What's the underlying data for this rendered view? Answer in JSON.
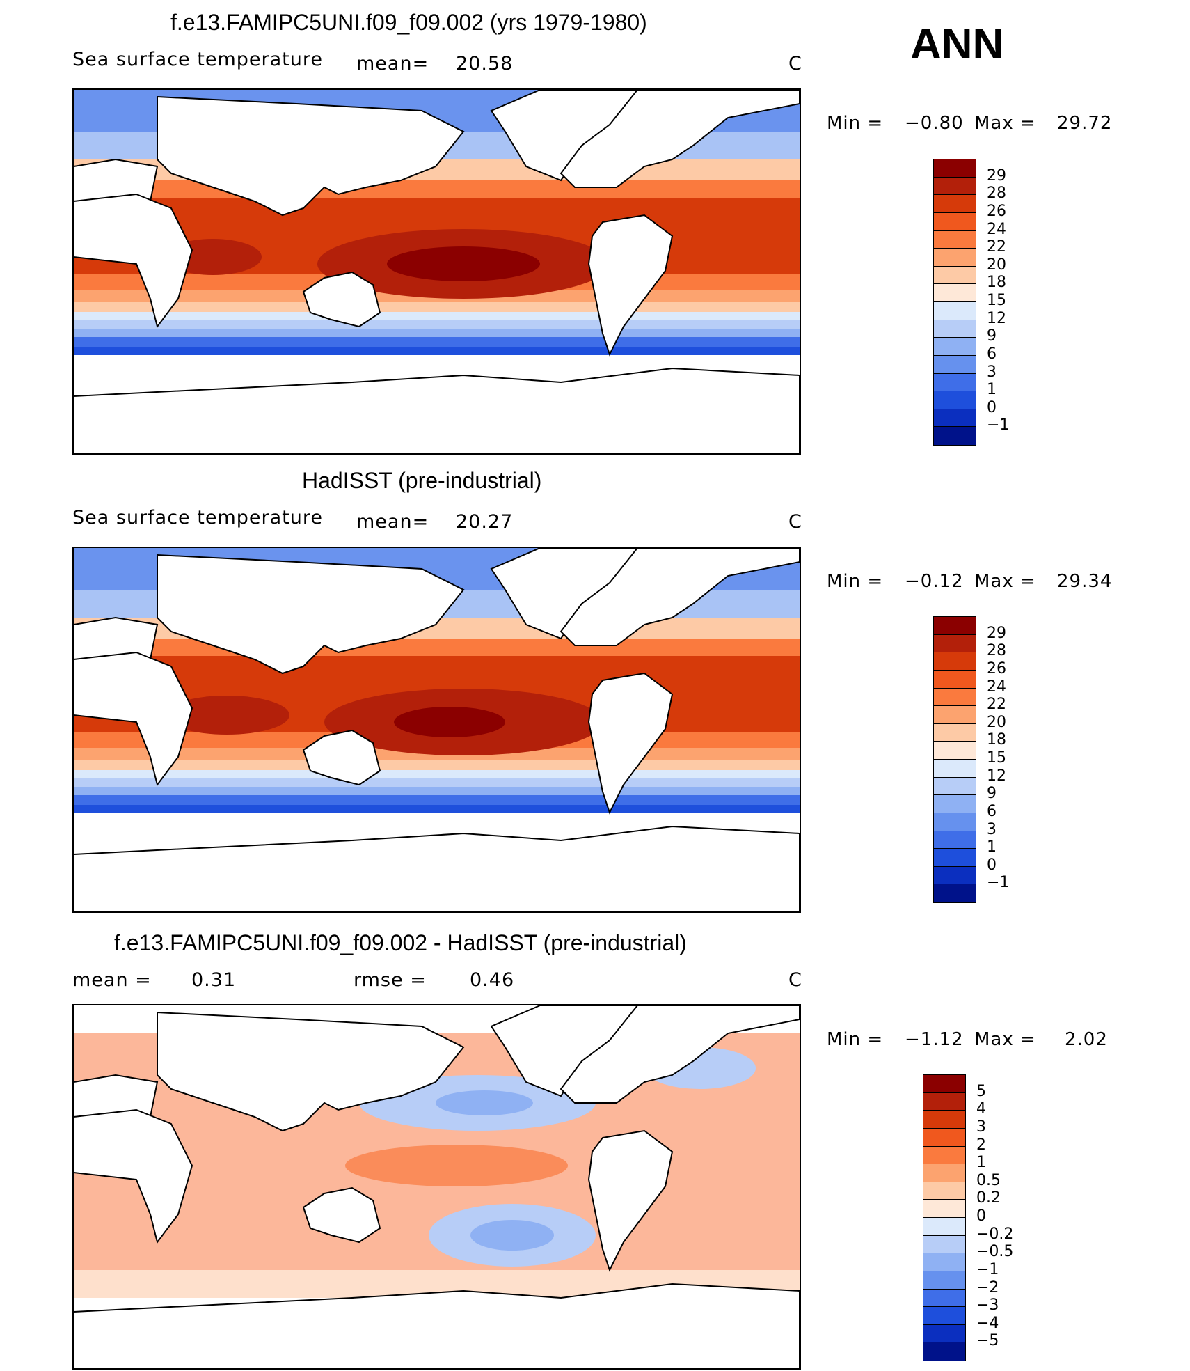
{
  "season": "ANN",
  "panels": [
    {
      "title": "f.e13.FAMIPC5UNI.f09_f09.002 (yrs 1979-1980)",
      "variable": "Sea surface temperature",
      "mean_label": "mean=",
      "mean_value": "20.58",
      "units": "C",
      "min_label": "Min =",
      "min_value": "−0.80",
      "max_label": "Max =",
      "max_value": "29.72",
      "colorbar_labels": [
        "29",
        "28",
        "26",
        "24",
        "22",
        "20",
        "18",
        "15",
        "12",
        "9",
        "6",
        "3",
        "1",
        "0",
        "−1"
      ],
      "colorbar_colors": [
        "#8b0000",
        "#b3200a",
        "#d63a0a",
        "#f0581e",
        "#fa7a3e",
        "#fca36f",
        "#fdcaa6",
        "#fee8d8",
        "#dbe9fb",
        "#b7cdf7",
        "#8fb1f3",
        "#6691ee",
        "#3f6ee8",
        "#1e4fdc",
        "#0b2fbf",
        "#00128a"
      ]
    },
    {
      "title": "HadISST (pre-industrial)",
      "variable": "Sea surface temperature",
      "mean_label": "mean=",
      "mean_value": "20.27",
      "units": "C",
      "min_label": "Min =",
      "min_value": "−0.12",
      "max_label": "Max =",
      "max_value": "29.34",
      "colorbar_labels": [
        "29",
        "28",
        "26",
        "24",
        "22",
        "20",
        "18",
        "15",
        "12",
        "9",
        "6",
        "3",
        "1",
        "0",
        "−1"
      ],
      "colorbar_colors": [
        "#8b0000",
        "#b3200a",
        "#d63a0a",
        "#f0581e",
        "#fa7a3e",
        "#fca36f",
        "#fdcaa6",
        "#fee8d8",
        "#dbe9fb",
        "#b7cdf7",
        "#8fb1f3",
        "#6691ee",
        "#3f6ee8",
        "#1e4fdc",
        "#0b2fbf",
        "#00128a"
      ]
    },
    {
      "title": "f.e13.FAMIPC5UNI.f09_f09.002 - HadISST (pre-industrial)",
      "mean_label": "mean =",
      "mean_value": "0.31",
      "rmse_label": "rmse =",
      "rmse_value": "0.46",
      "units": "C",
      "min_label": "Min =",
      "min_value": "−1.12",
      "max_label": "Max =",
      "max_value": "2.02",
      "colorbar_labels": [
        "5",
        "4",
        "3",
        "2",
        "1",
        "0.5",
        "0.2",
        "0",
        "−0.2",
        "−0.5",
        "−1",
        "−2",
        "−3",
        "−4",
        "−5"
      ],
      "colorbar_colors": [
        "#8b0000",
        "#b3200a",
        "#d63a0a",
        "#f0581e",
        "#fa7a3e",
        "#fca36f",
        "#fdcaa6",
        "#fee8d8",
        "#dbe9fb",
        "#b7cdf7",
        "#8fb1f3",
        "#6691ee",
        "#3f6ee8",
        "#1e4fdc",
        "#0b2fbf",
        "#00128a"
      ]
    }
  ]
}
